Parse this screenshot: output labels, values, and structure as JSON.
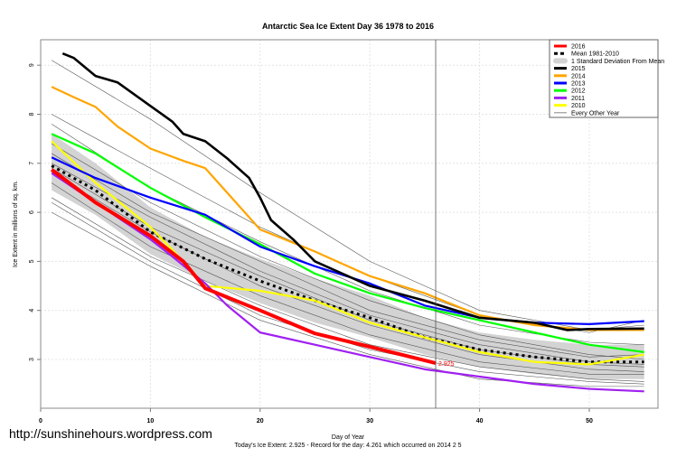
{
  "site_url": "http://sunshinehours.wordpress.com",
  "chart_data": {
    "type": "line",
    "title": "Antarctic Sea Ice Extent Day 36 1978 to 2016",
    "xlabel": "Day of Year",
    "ylabel": "Ice Extent in millions of sq. km.",
    "subtitle": "Today's Ice Extent: 2.925  - Record for the day: 4.261 which occurred on 2014 2 5",
    "xlim": [
      0,
      56
    ],
    "ylim": [
      2.0,
      9.6
    ],
    "xticks": [
      "0",
      "10",
      "20",
      "30",
      "40",
      "50"
    ],
    "yticks": [
      "3",
      "4",
      "5",
      "6",
      "7",
      "8",
      "9"
    ],
    "grid": true,
    "current_day": 36,
    "current_value_label": "2.925",
    "legend_position": "top-right",
    "sd_band": {
      "name": "1 Standard Deviation From Mean",
      "x": [
        1,
        5,
        10,
        15,
        20,
        25,
        30,
        35,
        40,
        45,
        50,
        55
      ],
      "lower": [
        6.45,
        5.95,
        5.15,
        4.6,
        4.15,
        3.75,
        3.45,
        3.1,
        2.85,
        2.7,
        2.6,
        2.6
      ],
      "upper": [
        7.6,
        7.0,
        6.1,
        5.5,
        5.05,
        4.65,
        4.3,
        3.85,
        3.55,
        3.4,
        3.3,
        3.3
      ],
      "color": "#d3d3d3"
    },
    "series": [
      {
        "name": "Every Other Year",
        "color": "#555555",
        "width": 0.6,
        "x": [
          1,
          10,
          20,
          30,
          40,
          50,
          55
        ],
        "y": [
          9.1,
          7.9,
          6.4,
          5.0,
          4.0,
          3.6,
          3.7
        ]
      },
      {
        "name": "",
        "color": "#555555",
        "width": 0.6,
        "x": [
          1,
          10,
          20,
          30,
          40,
          50,
          55
        ],
        "y": [
          8.0,
          6.9,
          5.7,
          4.7,
          3.9,
          3.55,
          3.8
        ]
      },
      {
        "name": "",
        "color": "#555555",
        "width": 0.6,
        "x": [
          1,
          10,
          20,
          30,
          40,
          50,
          55
        ],
        "y": [
          7.8,
          6.5,
          5.4,
          4.4,
          3.7,
          3.35,
          3.3
        ]
      },
      {
        "name": "",
        "color": "#555555",
        "width": 0.6,
        "x": [
          1,
          10,
          20,
          30,
          40,
          50,
          55
        ],
        "y": [
          7.4,
          6.2,
          5.1,
          4.2,
          3.5,
          3.1,
          3.0
        ]
      },
      {
        "name": "",
        "color": "#555555",
        "width": 0.6,
        "x": [
          1,
          10,
          20,
          30,
          40,
          50,
          55
        ],
        "y": [
          7.0,
          5.9,
          4.8,
          3.9,
          3.3,
          2.95,
          2.9
        ]
      },
      {
        "name": "",
        "color": "#555555",
        "width": 0.6,
        "x": [
          1,
          10,
          20,
          30,
          40,
          50,
          55
        ],
        "y": [
          6.8,
          5.6,
          4.5,
          3.7,
          3.1,
          2.8,
          2.75
        ]
      },
      {
        "name": "",
        "color": "#555555",
        "width": 0.6,
        "x": [
          1,
          10,
          20,
          30,
          40,
          50,
          55
        ],
        "y": [
          6.6,
          5.3,
          4.3,
          3.5,
          2.95,
          2.7,
          2.7
        ]
      },
      {
        "name": "",
        "color": "#555555",
        "width": 0.6,
        "x": [
          1,
          10,
          20,
          30,
          40,
          50,
          55
        ],
        "y": [
          6.3,
          5.1,
          4.1,
          3.3,
          2.85,
          2.6,
          2.55
        ]
      },
      {
        "name": "",
        "color": "#555555",
        "width": 0.6,
        "x": [
          1,
          10,
          20,
          30,
          40,
          50,
          55
        ],
        "y": [
          6.2,
          5.0,
          3.9,
          3.2,
          2.75,
          2.55,
          2.5
        ]
      },
      {
        "name": "",
        "color": "#555555",
        "width": 0.6,
        "x": [
          1,
          10,
          20,
          30,
          40,
          50,
          55
        ],
        "y": [
          6.0,
          4.9,
          3.8,
          3.1,
          2.6,
          2.45,
          2.45
        ]
      },
      {
        "name": "",
        "color": "#555555",
        "width": 0.6,
        "x": [
          1,
          10,
          20,
          30,
          40,
          50,
          55
        ],
        "y": [
          7.2,
          6.0,
          5.0,
          4.0,
          3.4,
          3.05,
          3.1
        ]
      },
      {
        "name": "",
        "color": "#555555",
        "width": 0.6,
        "x": [
          1,
          10,
          20,
          30,
          40,
          50,
          55
        ],
        "y": [
          6.9,
          5.7,
          4.7,
          3.8,
          3.2,
          2.9,
          2.85
        ]
      },
      {
        "name": "Mean 1981-2010",
        "color": "#000000",
        "width": 3,
        "dash": "3,4",
        "x": [
          1,
          5,
          10,
          15,
          20,
          25,
          30,
          35,
          40,
          45,
          50,
          55
        ],
        "y": [
          6.95,
          6.45,
          5.6,
          5.05,
          4.6,
          4.2,
          3.85,
          3.45,
          3.2,
          3.05,
          2.95,
          2.95
        ]
      },
      {
        "name": "2010",
        "color": "#ffff00",
        "width": 2.2,
        "x": [
          1,
          5,
          10,
          13,
          15,
          20,
          25,
          30,
          35,
          40,
          45,
          50,
          55
        ],
        "y": [
          7.45,
          6.6,
          5.7,
          5.0,
          4.5,
          4.4,
          4.2,
          3.75,
          3.45,
          3.15,
          2.95,
          2.9,
          3.1
        ]
      },
      {
        "name": "2011",
        "color": "#a020f0",
        "width": 2.2,
        "x": [
          1,
          5,
          10,
          12,
          15,
          17,
          20,
          25,
          30,
          35,
          40,
          45,
          50,
          55
        ],
        "y": [
          6.8,
          6.2,
          5.45,
          5.1,
          4.55,
          4.1,
          3.55,
          3.3,
          3.05,
          2.8,
          2.65,
          2.5,
          2.4,
          2.35
        ]
      },
      {
        "name": "2012",
        "color": "#00ff00",
        "width": 2.2,
        "x": [
          1,
          5,
          10,
          15,
          20,
          25,
          30,
          35,
          40,
          45,
          50,
          55
        ],
        "y": [
          7.6,
          7.2,
          6.5,
          5.9,
          5.35,
          4.75,
          4.35,
          4.05,
          3.8,
          3.55,
          3.3,
          3.15
        ]
      },
      {
        "name": "2013",
        "color": "#0000ff",
        "width": 2.2,
        "x": [
          1,
          5,
          10,
          15,
          20,
          25,
          30,
          35,
          40,
          45,
          50,
          55
        ],
        "y": [
          7.12,
          6.7,
          6.3,
          5.95,
          5.3,
          4.9,
          4.55,
          4.1,
          3.85,
          3.75,
          3.72,
          3.78
        ]
      },
      {
        "name": "2014",
        "color": "#ffa500",
        "width": 2.2,
        "x": [
          1,
          3,
          5,
          7,
          10,
          13,
          15,
          20,
          25,
          30,
          35,
          40,
          45,
          50,
          55
        ],
        "y": [
          8.56,
          8.35,
          8.15,
          7.75,
          7.3,
          7.05,
          6.9,
          5.65,
          5.2,
          4.7,
          4.35,
          3.9,
          3.7,
          3.6,
          3.6
        ]
      },
      {
        "name": "2015",
        "color": "#000000",
        "width": 2.6,
        "x": [
          2,
          3,
          5,
          7,
          10,
          12,
          13,
          15,
          17,
          19,
          20,
          21,
          23,
          25,
          30,
          35,
          40,
          45,
          48,
          50,
          55
        ],
        "y": [
          9.24,
          9.15,
          8.78,
          8.65,
          8.17,
          7.85,
          7.6,
          7.45,
          7.1,
          6.7,
          6.3,
          5.84,
          5.45,
          5.0,
          4.5,
          4.2,
          3.85,
          3.75,
          3.6,
          3.62,
          3.63
        ]
      },
      {
        "name": "2016",
        "color": "#ff0000",
        "width": 4,
        "x": [
          1,
          5,
          10,
          13,
          15,
          20,
          25,
          30,
          36
        ],
        "y": [
          6.87,
          6.2,
          5.52,
          5.0,
          4.45,
          4.0,
          3.53,
          3.26,
          2.925
        ]
      }
    ],
    "legend": [
      {
        "label": "2016",
        "color": "#ff0000",
        "style": "line"
      },
      {
        "label": "Mean 1981-2010",
        "color": "#000000",
        "style": "dash"
      },
      {
        "label": "1 Standard Deviation From Mean",
        "color": "#d3d3d3",
        "style": "box"
      },
      {
        "label": "2015",
        "color": "#000000",
        "style": "line"
      },
      {
        "label": "2014",
        "color": "#ffa500",
        "style": "line"
      },
      {
        "label": "2013",
        "color": "#0000ff",
        "style": "line"
      },
      {
        "label": "2012",
        "color": "#00ff00",
        "style": "line"
      },
      {
        "label": "2011",
        "color": "#a020f0",
        "style": "line"
      },
      {
        "label": "2010",
        "color": "#ffff00",
        "style": "line"
      },
      {
        "label": "Every Other Year",
        "color": "#888888",
        "style": "thin"
      }
    ]
  }
}
